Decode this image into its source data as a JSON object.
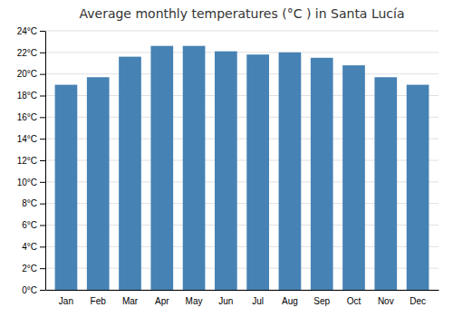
{
  "chart_data": {
    "type": "bar",
    "title": "Average monthly temperatures (°C ) in Santa Lucía",
    "categories": [
      "Jan",
      "Feb",
      "Mar",
      "Apr",
      "May",
      "Jun",
      "Jul",
      "Aug",
      "Sep",
      "Oct",
      "Nov",
      "Dec"
    ],
    "values": [
      19.0,
      19.7,
      21.6,
      22.6,
      22.6,
      22.1,
      21.8,
      22.0,
      21.5,
      20.8,
      19.7,
      19.0
    ],
    "ylim": [
      0,
      24
    ],
    "yticks": [
      {
        "value": 0,
        "label": "0°C"
      },
      {
        "value": 2,
        "label": "2°C"
      },
      {
        "value": 4,
        "label": "4°C"
      },
      {
        "value": 6,
        "label": "6°C"
      },
      {
        "value": 8,
        "label": "8°C"
      },
      {
        "value": 10,
        "label": "10°C"
      },
      {
        "value": 12,
        "label": "12°C"
      },
      {
        "value": 14,
        "label": "14°C"
      },
      {
        "value": 16,
        "label": "16°C"
      },
      {
        "value": 18,
        "label": "18°C"
      },
      {
        "value": 20,
        "label": "20°C"
      },
      {
        "value": 22,
        "label": "22°C"
      },
      {
        "value": 24,
        "label": "24°C"
      }
    ],
    "grid": true
  }
}
